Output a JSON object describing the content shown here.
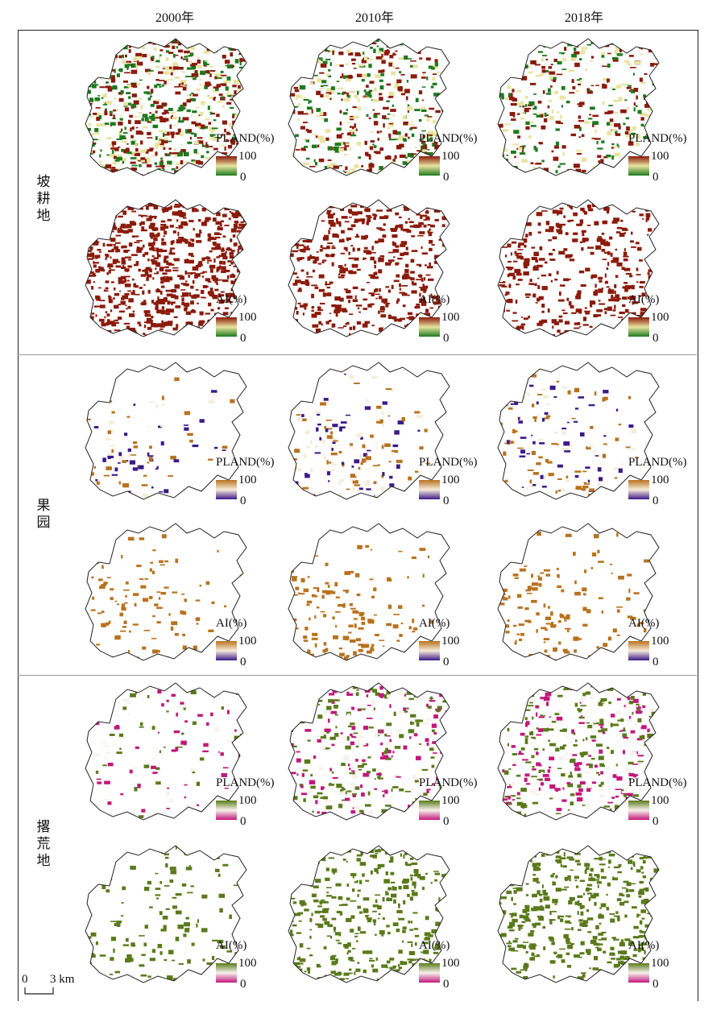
{
  "columns": [
    "2000年",
    "2010年",
    "2018年"
  ],
  "rows": [
    {
      "label": "坡耕地",
      "chars": [
        "坡",
        "耕",
        "地"
      ],
      "maps": [
        {
          "title": "PLAND(%)",
          "max": "100",
          "min": "0",
          "colors": [
            "#1e7a1e",
            "#e8e4a0",
            "#8b1a0a"
          ],
          "density": [
            0.85,
            0.55,
            0.45
          ]
        },
        {
          "title": "AI(%)",
          "max": "100",
          "min": "0",
          "colors": [
            "#1e7a1e",
            "#e8e4a0",
            "#8b1a0a"
          ],
          "density": [
            0.9,
            0.55,
            0.45
          ]
        }
      ]
    },
    {
      "label": "果园",
      "chars": [
        "果",
        "园"
      ],
      "maps": [
        {
          "title": "PLAND(%)",
          "max": "100",
          "min": "0",
          "colors": [
            "#3b1a8a",
            "#f5ecd8",
            "#b8721e"
          ],
          "density": [
            0.2,
            0.3,
            0.3
          ]
        },
        {
          "title": "AI(%)",
          "max": "100",
          "min": "0",
          "colors": [
            "#3b1a8a",
            "#f5ecd8",
            "#b8721e"
          ],
          "density": [
            0.2,
            0.3,
            0.3
          ]
        }
      ]
    },
    {
      "label": "撂荒地",
      "chars": [
        "撂",
        "荒",
        "地"
      ],
      "maps": [
        {
          "title": "PLAND(%)",
          "max": "100",
          "min": "0",
          "colors": [
            "#c2187a",
            "#f8f2ec",
            "#5a7a1a"
          ],
          "density": [
            0.15,
            0.45,
            0.5
          ]
        },
        {
          "title": "AI(%)",
          "max": "100",
          "min": "0",
          "colors": [
            "#c2187a",
            "#f8f2ec",
            "#5a7a1a"
          ],
          "density": [
            0.15,
            0.4,
            0.5
          ]
        }
      ]
    }
  ],
  "scale_bar": {
    "zero": "0",
    "label": "3 km"
  }
}
